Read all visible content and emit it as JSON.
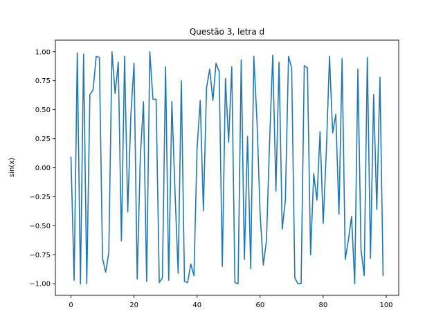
{
  "chart_data": {
    "type": "line",
    "title": "Questão 3, letra d",
    "xlabel": "",
    "ylabel": "sin(x)",
    "xlim": [
      -4.95,
      103.95
    ],
    "ylim": [
      -1.1,
      1.1
    ],
    "xticks": [
      0,
      20,
      40,
      60,
      80,
      100
    ],
    "yticks": [
      -1.0,
      -0.75,
      -0.5,
      -0.25,
      0.0,
      0.25,
      0.5,
      0.75,
      1.0
    ],
    "ytick_labels": [
      "−1.00",
      "−0.75",
      "−0.50",
      "−0.25",
      "0.00",
      "0.25",
      "0.50",
      "0.75",
      "1.00"
    ],
    "grid": false,
    "series": [
      {
        "name": "",
        "color": "#1f77b4",
        "x": [
          0,
          1,
          2,
          3,
          4,
          5,
          6,
          7,
          8,
          9,
          10,
          11,
          12,
          13,
          14,
          15,
          16,
          17,
          18,
          19,
          20,
          21,
          22,
          23,
          24,
          25,
          26,
          27,
          28,
          29,
          30,
          31,
          32,
          33,
          34,
          35,
          36,
          37,
          38,
          39,
          40,
          41,
          42,
          43,
          44,
          45,
          46,
          47,
          48,
          49,
          50,
          51,
          52,
          53,
          54,
          55,
          56,
          57,
          58,
          59,
          60,
          61,
          62,
          63,
          64,
          65,
          66,
          67,
          68,
          69,
          70,
          71,
          72,
          73,
          74,
          75,
          76,
          77,
          78,
          79,
          80,
          81,
          82,
          83,
          84,
          85,
          86,
          87,
          88,
          89,
          90,
          91,
          92,
          93,
          94,
          95,
          96,
          97,
          98,
          99
        ],
        "values": [
          0.09,
          -0.97,
          0.99,
          -1.0,
          0.98,
          -1.0,
          0.63,
          0.67,
          0.96,
          0.95,
          -0.78,
          -0.9,
          -0.73,
          1.0,
          0.64,
          0.91,
          -0.63,
          0.96,
          -0.38,
          0.46,
          0.9,
          -0.96,
          0.1,
          0.57,
          -0.98,
          1.0,
          0.59,
          0.59,
          -0.99,
          -0.95,
          0.87,
          -0.97,
          0.57,
          -0.21,
          -0.91,
          0.75,
          -0.98,
          -0.99,
          -0.83,
          -0.93,
          0.17,
          0.58,
          -0.37,
          0.69,
          0.85,
          0.58,
          0.9,
          0.83,
          -0.85,
          0.77,
          0.22,
          0.87,
          -0.99,
          -1.0,
          0.93,
          -0.79,
          0.27,
          -0.87,
          0.96,
          0.4,
          -0.4,
          -0.84,
          -0.63,
          0.23,
          0.97,
          -0.2,
          0.91,
          -0.53,
          -0.28,
          0.96,
          0.86,
          -0.95,
          -1.0,
          -1.0,
          0.88,
          0.86,
          -0.75,
          -0.05,
          -0.28,
          0.31,
          -0.48,
          0.15,
          0.96,
          0.3,
          0.46,
          -0.4,
          0.94,
          -0.79,
          -0.62,
          -0.42,
          -1.0,
          0.85,
          -0.71,
          -0.93,
          0.95,
          -0.78,
          0.63,
          -0.36,
          0.78,
          -0.93
        ]
      }
    ]
  }
}
